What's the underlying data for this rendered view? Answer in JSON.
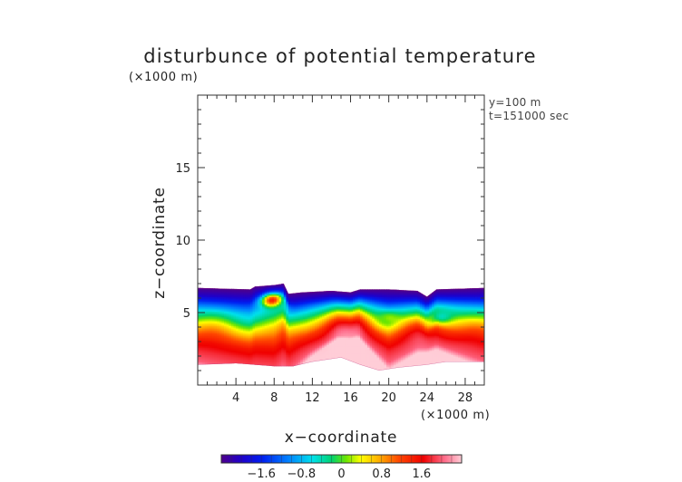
{
  "chart_data": {
    "type": "heatmap",
    "title": "disturbunce of potential temperature",
    "xlabel": "x−coordinate",
    "ylabel": "z−coordinate",
    "x_unit": "(×1000 m)",
    "y_unit": "(×1000 m)",
    "annotations": [
      "y=100 m",
      "t=151000 sec"
    ],
    "xlim": [
      0,
      30
    ],
    "ylim": [
      0,
      20
    ],
    "x_ticks": [
      4,
      8,
      12,
      16,
      20,
      24,
      28
    ],
    "x_tick_labels": [
      "4",
      "8",
      "12",
      "16",
      "20",
      "24",
      "28"
    ],
    "y_ticks": [
      5,
      10,
      15
    ],
    "y_tick_labels": [
      "5",
      "10",
      "15"
    ],
    "colorbar": {
      "range": [
        -2.4,
        2.4
      ],
      "ticks": [
        -1.6,
        -0.8,
        0,
        0.8,
        1.6
      ],
      "tick_labels": [
        "−1.6",
        "−0.8",
        "0",
        "0.8",
        "1.6"
      ]
    },
    "field": {
      "top_boundary": [
        [
          0,
          6.7
        ],
        [
          5.5,
          6.6
        ],
        [
          6,
          6.8
        ],
        [
          8,
          6.9
        ],
        [
          9,
          7.0
        ],
        [
          9.5,
          6.3
        ],
        [
          11,
          6.4
        ],
        [
          14,
          6.5
        ],
        [
          16,
          6.4
        ],
        [
          17,
          6.6
        ],
        [
          20,
          6.6
        ],
        [
          23,
          6.5
        ],
        [
          24,
          6.1
        ],
        [
          25,
          6.6
        ],
        [
          30,
          6.7
        ]
      ],
      "bottom_boundary": [
        [
          0,
          1.4
        ],
        [
          4,
          1.5
        ],
        [
          8,
          1.3
        ],
        [
          10,
          1.3
        ],
        [
          12,
          1.6
        ],
        [
          15,
          1.9
        ],
        [
          17,
          1.4
        ],
        [
          19,
          1.0
        ],
        [
          21,
          1.2
        ],
        [
          24,
          1.4
        ],
        [
          26,
          1.6
        ],
        [
          30,
          1.6
        ]
      ],
      "value_profile": [
        [
          0,
          -2.4
        ],
        [
          0.5,
          -2.0
        ],
        [
          1.0,
          -1.3
        ],
        [
          1.5,
          -0.6
        ],
        [
          2.0,
          -0.1
        ],
        [
          2.5,
          0.5
        ],
        [
          3.0,
          1.0
        ],
        [
          3.6,
          1.5
        ],
        [
          4.3,
          1.8
        ],
        [
          5.0,
          2.0
        ],
        [
          5.5,
          2.4
        ]
      ],
      "upper_cold_layer_m": [
        [
          0,
          1.0
        ],
        [
          8,
          1.2
        ],
        [
          12,
          0.8
        ],
        [
          16,
          0.5
        ],
        [
          20,
          1.0
        ],
        [
          24,
          0.7
        ],
        [
          30,
          1.0
        ]
      ],
      "anomalies": [
        {
          "x": 7.8,
          "dz": 1.0,
          "value": 1.4,
          "note": "warm pocket"
        },
        {
          "x": 20,
          "dz": 2.0,
          "value": 0.3,
          "note": "green bulge"
        },
        {
          "x": 25.5,
          "dz": 1.8,
          "value": -0.3,
          "note": "cyan tongue"
        }
      ]
    }
  }
}
